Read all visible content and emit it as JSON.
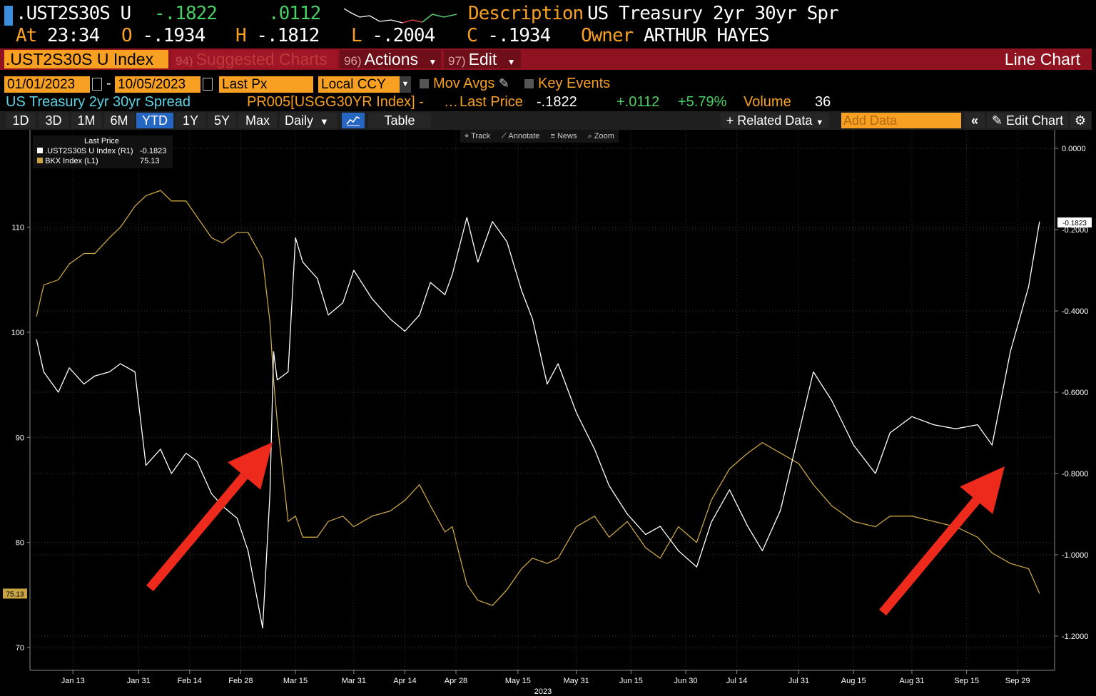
{
  "header": {
    "ticker": ".UST2S30S U",
    "last": "-.1822",
    "change": ".0112",
    "description_label": "Description",
    "description": "US Treasury 2yr 30yr Spr",
    "at_label": "At",
    "time": "23:34",
    "open_label": "O",
    "open": "-.1934",
    "high_label": "H",
    "high": "-.1812",
    "low_label": "L",
    "low": "-.2004",
    "close_label": "C",
    "close": "-.1934",
    "owner_label": "Owner",
    "owner": "ARTHUR HAYES"
  },
  "tabs": {
    "index": ".UST2S30S U Index",
    "suggested_num": "94)",
    "suggested": "Suggested Charts",
    "actions_num": "96)",
    "actions": "Actions",
    "edit_num": "97)",
    "edit": "Edit",
    "view_title": "Line Chart"
  },
  "controls": {
    "start_date": "01/01/2023",
    "dash": "-",
    "end_date": "10/05/2023",
    "field": "Last Px",
    "currency": "Local CCY",
    "mov_avgs": "Mov Avgs",
    "key_events": "Key Events"
  },
  "info": {
    "name": "US Treasury 2yr 30yr Spread",
    "source": "PR005[USGG30YR Index] -",
    "ellipsis": "…",
    "last_price_label": "Last Price",
    "last_price": "-.1822",
    "net_change": "+.0112",
    "pct_change": "+5.79%",
    "volume_label": "Volume",
    "volume": "36"
  },
  "toolbar": {
    "periods": [
      "1D",
      "3D",
      "1M",
      "6M",
      "YTD",
      "1Y",
      "5Y",
      "Max"
    ],
    "selected_period": "YTD",
    "frequency": "Daily",
    "table": "Table",
    "related_data": "Related Data",
    "add_data_placeholder": "Add Data",
    "edit_chart": "Edit Chart"
  },
  "chart_tools": [
    "Track",
    "Annotate",
    "News",
    "Zoom"
  ],
  "legend": {
    "title": "Last Price",
    "series": [
      {
        "name": ".UST2S30S U Index  (R1)",
        "value": "-0.1823",
        "color": "#ffffff"
      },
      {
        "name": "BKX Index  (L1)",
        "value": "75.13",
        "color": "#c9a445"
      }
    ]
  },
  "colors": {
    "orange": "#f8a022",
    "red_bar": "#8e1220",
    "green": "#45d062",
    "cyan": "#5fd3e6",
    "bkx_line": "#c9a445",
    "spread_line": "#ffffff",
    "arrow": "#ee2a1c"
  },
  "chart_data": {
    "type": "line",
    "x_labels": [
      "Jan 13",
      "Jan 31",
      "Feb 14",
      "Feb 28",
      "Mar 15",
      "Mar 31",
      "Apr 14",
      "Apr 28",
      "May 15",
      "May 31",
      "Jun 15",
      "Jun 30",
      "Jul 14",
      "Jul 31",
      "Aug 15",
      "Aug 31",
      "Sep 15",
      "Sep 29"
    ],
    "x_year": "2023",
    "left_axis": {
      "ticks": [
        "70",
        "80",
        "90",
        "100",
        "110"
      ],
      "range": [
        69.5,
        114
      ],
      "current_label": "75.13"
    },
    "right_axis": {
      "ticks": [
        "0.0000",
        "-0.2000",
        "-0.4000",
        "-0.6000",
        "-0.8000",
        "-1.0000",
        "-1.2000"
      ],
      "range": [
        -1.2,
        0
      ],
      "current_label": "-0.1823"
    },
    "series": [
      {
        "name": "BKX Index (L1)",
        "axis": "left",
        "dates": [
          "Jan 3",
          "Jan 5",
          "Jan 9",
          "Jan 12",
          "Jan 16",
          "Jan 19",
          "Jan 23",
          "Jan 26",
          "Jan 30",
          "Feb 2",
          "Feb 6",
          "Feb 9",
          "Feb 13",
          "Feb 16",
          "Feb 20",
          "Feb 23",
          "Feb 27",
          "Mar 2",
          "Mar 6",
          "Mar 8",
          "Mar 9",
          "Mar 10",
          "Mar 13",
          "Mar 15",
          "Mar 17",
          "Mar 21",
          "Mar 24",
          "Mar 28",
          "Mar 31",
          "Apr 5",
          "Apr 10",
          "Apr 14",
          "Apr 18",
          "Apr 21",
          "Apr 25",
          "Apr 27",
          "May 1",
          "May 4",
          "May 8",
          "May 12",
          "May 16",
          "May 19",
          "May 23",
          "May 26",
          "May 31",
          "Jun 5",
          "Jun 9",
          "Jun 14",
          "Jun 19",
          "Jun 23",
          "Jun 28",
          "Jul 3",
          "Jul 7",
          "Jul 12",
          "Jul 17",
          "Jul 21",
          "Jul 26",
          "Jul 31",
          "Aug 4",
          "Aug 9",
          "Aug 15",
          "Aug 21",
          "Aug 25",
          "Aug 31",
          "Sep 6",
          "Sep 12",
          "Sep 18",
          "Sep 22",
          "Sep 27",
          "Oct 2",
          "Oct 5"
        ],
        "values": [
          101.5,
          104.5,
          105,
          106.5,
          107.5,
          107.5,
          109,
          110,
          112,
          113,
          113.5,
          112.5,
          112.5,
          111,
          109,
          108.5,
          109.5,
          109.5,
          107,
          101,
          95.5,
          91.5,
          82,
          82.5,
          80.5,
          80.5,
          82,
          82.5,
          81.5,
          82.5,
          83,
          84,
          85.5,
          83.5,
          81,
          81.5,
          76,
          74.5,
          74,
          75.5,
          77.5,
          78.5,
          78,
          78.5,
          81.5,
          82.5,
          80.5,
          82,
          79.5,
          78.5,
          81.5,
          80,
          84,
          87,
          88.5,
          89.5,
          88.5,
          87.5,
          85.5,
          83.5,
          82,
          81.5,
          82.5,
          82.5,
          82,
          81.5,
          80.5,
          79,
          78,
          77.5,
          75.13
        ]
      },
      {
        "name": ".UST2S30S U Index (R1)",
        "axis": "right",
        "dates": [
          "Jan 3",
          "Jan 5",
          "Jan 9",
          "Jan 12",
          "Jan 16",
          "Jan 19",
          "Jan 23",
          "Jan 26",
          "Jan 30",
          "Feb 2",
          "Feb 6",
          "Feb 9",
          "Feb 13",
          "Feb 16",
          "Feb 20",
          "Feb 23",
          "Feb 27",
          "Mar 2",
          "Mar 6",
          "Mar 8",
          "Mar 9",
          "Mar 10",
          "Mar 13",
          "Mar 15",
          "Mar 17",
          "Mar 21",
          "Mar 24",
          "Mar 28",
          "Mar 31",
          "Apr 5",
          "Apr 10",
          "Apr 14",
          "Apr 18",
          "Apr 21",
          "Apr 25",
          "Apr 27",
          "May 1",
          "May 4",
          "May 8",
          "May 12",
          "May 16",
          "May 19",
          "May 23",
          "May 26",
          "May 31",
          "Jun 5",
          "Jun 9",
          "Jun 14",
          "Jun 19",
          "Jun 23",
          "Jun 28",
          "Jul 3",
          "Jul 7",
          "Jul 12",
          "Jul 17",
          "Jul 21",
          "Jul 26",
          "Jul 31",
          "Aug 4",
          "Aug 9",
          "Aug 15",
          "Aug 21",
          "Aug 25",
          "Aug 31",
          "Sep 6",
          "Sep 12",
          "Sep 18",
          "Sep 22",
          "Sep 27",
          "Oct 2",
          "Oct 5"
        ],
        "values": [
          -0.47,
          -0.55,
          -0.6,
          -0.54,
          -0.58,
          -0.56,
          -0.55,
          -0.53,
          -0.55,
          -0.78,
          -0.74,
          -0.8,
          -0.75,
          -0.77,
          -0.85,
          -0.88,
          -0.91,
          -0.99,
          -1.18,
          -0.85,
          -0.5,
          -0.57,
          -0.55,
          -0.22,
          -0.28,
          -0.32,
          -0.41,
          -0.38,
          -0.3,
          -0.37,
          -0.42,
          -0.45,
          -0.41,
          -0.33,
          -0.36,
          -0.31,
          -0.17,
          -0.28,
          -0.18,
          -0.23,
          -0.35,
          -0.42,
          -0.58,
          -0.53,
          -0.65,
          -0.74,
          -0.83,
          -0.9,
          -0.95,
          -0.93,
          -0.99,
          -1.03,
          -0.92,
          -0.84,
          -0.93,
          -0.99,
          -0.89,
          -0.7,
          -0.55,
          -0.62,
          -0.73,
          -0.8,
          -0.7,
          -0.66,
          -0.68,
          -0.69,
          -0.68,
          -0.73,
          -0.5,
          -0.34,
          -0.18
        ]
      }
    ]
  }
}
